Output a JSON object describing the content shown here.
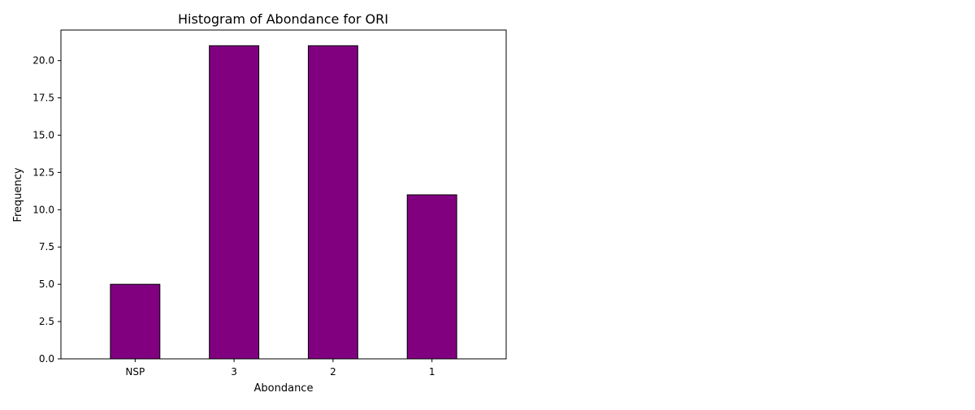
{
  "chart_data": {
    "type": "bar",
    "title": "Histogram of Abondance for ORI",
    "xlabel": "Abondance",
    "ylabel": "Frequency",
    "categories": [
      "NSP",
      "3",
      "2",
      "1"
    ],
    "values": [
      5,
      21,
      21,
      11
    ],
    "ylim": [
      0,
      22.05
    ],
    "yticks": [
      "0.0",
      "2.5",
      "5.0",
      "7.5",
      "10.0",
      "12.5",
      "15.0",
      "17.5",
      "20.0"
    ],
    "grid": false,
    "legend": "none",
    "bar_color": "#800080",
    "edge_color": "#000000"
  }
}
